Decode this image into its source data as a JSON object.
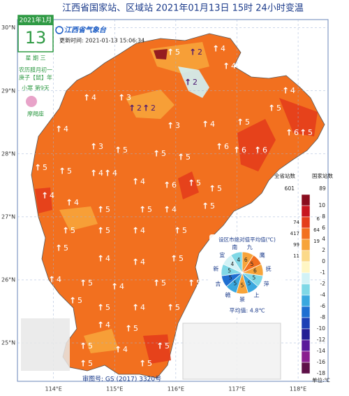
{
  "title": "江西省国家站、区域站    2021年01月13日  15时    24小时变温",
  "calendar": {
    "month": "2021年1月",
    "day": "13",
    "weekday": "星 期 三",
    "lunar": "农历腊月初一",
    "year": "庚子【鼠】年",
    "term": "小寒 第9天",
    "zodiac": "摩羯座"
  },
  "logo": "江西省气象台",
  "update_time": "更新时间: 2021-01-13 15:06:34",
  "review_number": "审图号: GS (2017) 3320号",
  "map": {
    "xlim": [
      113.41,
      118.49
    ],
    "ylim": [
      24.39,
      30.13
    ],
    "xticks": [
      {
        "value": 114,
        "label": "114°E"
      },
      {
        "value": 115,
        "label": "115°E"
      },
      {
        "value": 116,
        "label": "116°E"
      },
      {
        "value": 117,
        "label": "117°E"
      },
      {
        "value": 118,
        "label": "118°E"
      }
    ],
    "yticks": [
      {
        "value": 30,
        "label": "30°N"
      },
      {
        "value": 29,
        "label": "29°N"
      },
      {
        "value": 28,
        "label": "28°N"
      },
      {
        "value": 27,
        "label": "27°N"
      },
      {
        "value": 26,
        "label": "26°N"
      },
      {
        "value": 25,
        "label": "25°N"
      }
    ],
    "station_changes": [
      4,
      4,
      2,
      5,
      4,
      4,
      5,
      2,
      2,
      2,
      4,
      3,
      3,
      4,
      5,
      6,
      5,
      6,
      6,
      6,
      4,
      3,
      5,
      5,
      5,
      5,
      5,
      4,
      4,
      4,
      6,
      5,
      5,
      4,
      4,
      5,
      5,
      4,
      5,
      5,
      5,
      4,
      5,
      5,
      4,
      4,
      5,
      4,
      5,
      4,
      5,
      5,
      5,
      5,
      4,
      5,
      4,
      5,
      5,
      5,
      4,
      5,
      5
    ]
  },
  "legend": {
    "header_province": "全省站数",
    "header_national": "国家站数",
    "total_province": 601,
    "total_national": 89,
    "levels": [
      10,
      8,
      6,
      4,
      2,
      0,
      -1,
      -2,
      -4,
      -6,
      -8,
      -10,
      -12,
      -14,
      -16,
      -18
    ],
    "colors": [
      "#8a0d1e",
      "#c7161f",
      "#e43d1b",
      "#f2701f",
      "#f7a43a",
      "#fbd98a",
      "#fff6c4",
      "#d2f2f6",
      "#7fd8e6",
      "#3aa8df",
      "#1f6fd1",
      "#1c3fb5",
      "#231f94",
      "#5b1a9a",
      "#8a1f8f",
      "#5e1048"
    ],
    "province_counts": [
      null,
      null,
      74,
      417,
      99,
      11,
      null,
      null,
      null,
      null,
      null,
      null,
      null,
      null,
      null,
      null
    ],
    "national_counts": [
      null,
      null,
      6,
      64,
      19,
      null,
      null,
      null,
      null,
      null,
      null,
      null,
      null,
      null,
      null,
      null
    ],
    "unit": "单位:℃"
  },
  "pie": {
    "title": "设区市绝对值平均值(℃)",
    "labels": [
      "九",
      "鹰",
      "抚",
      "萍",
      "上",
      "景",
      "赣",
      "吉",
      "新",
      "宜",
      "南"
    ],
    "values": [
      6,
      5,
      6,
      5,
      5,
      5,
      5,
      5,
      5,
      4,
      4
    ],
    "colors": [
      "#f7a43a",
      "#f2701f",
      "#f7a43a",
      "#7fd8e6",
      "#3aa8df",
      "#f7a43a",
      "#3aa8df",
      "#1f6fd1",
      "#7fd8e6",
      "#d2f2f6",
      "#7fd8e6"
    ],
    "average": "平均值: 4.8℃"
  }
}
